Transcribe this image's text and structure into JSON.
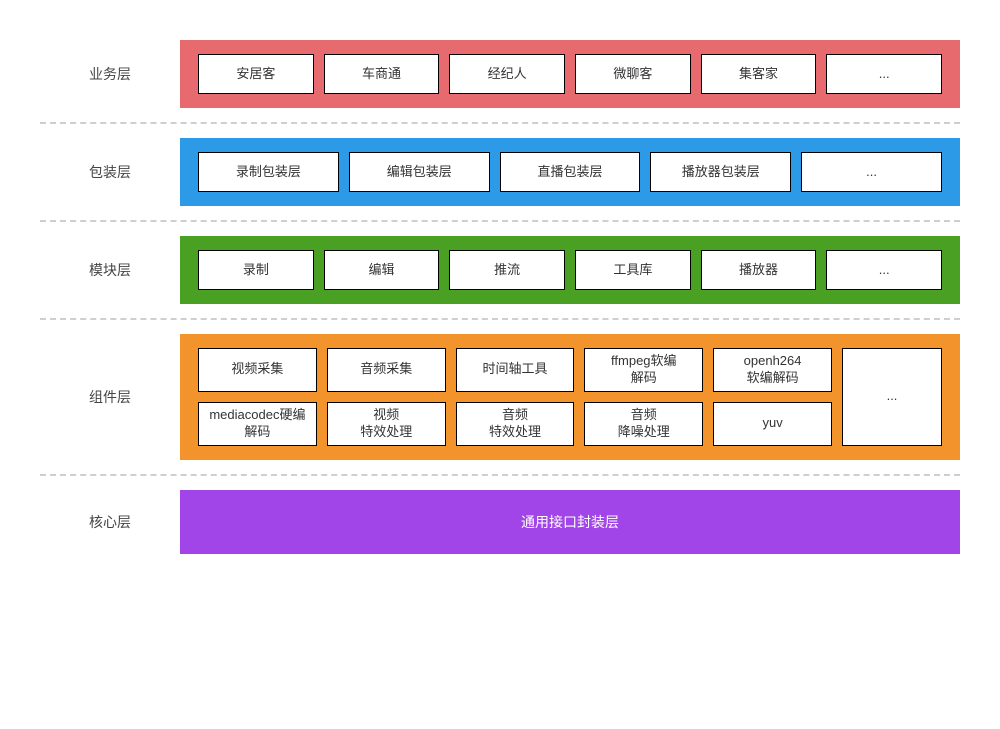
{
  "layers": {
    "business": {
      "label": "业务层",
      "bg_color": "#e76a6f",
      "items": [
        "安居客",
        "车商通",
        "经纪人",
        "微聊客",
        "集客家",
        "..."
      ]
    },
    "wrapper": {
      "label": "包装层",
      "bg_color": "#2d9ae7",
      "items": [
        "录制包装层",
        "编辑包装层",
        "直播包装层",
        "播放器包装层",
        "..."
      ]
    },
    "module": {
      "label": "模块层",
      "bg_color": "#4aa022",
      "items": [
        "录制",
        "编辑",
        "推流",
        "工具库",
        "播放器",
        "..."
      ]
    },
    "component": {
      "label": "组件层",
      "bg_color": "#f2932b",
      "row1": [
        "视频采集",
        "音频采集",
        "时间轴工具",
        "ffmpeg软编\n解码",
        "openh264\n软编解码"
      ],
      "row2": [
        "mediacodec硬编解码",
        "视频\n特效处理",
        "音频\n特效处理",
        "音频\n降噪处理",
        "yuv"
      ],
      "tall": "..."
    },
    "core": {
      "label": "核心层",
      "bg_color": "#a245e8",
      "text": "通用接口封装层",
      "text_color": "#ffffff"
    }
  },
  "style": {
    "box_bg": "#ffffff",
    "box_border": "#000000",
    "divider_color": "#cfcfcf",
    "label_color": "#444444",
    "box_font_size": 13,
    "label_font_size": 14
  }
}
